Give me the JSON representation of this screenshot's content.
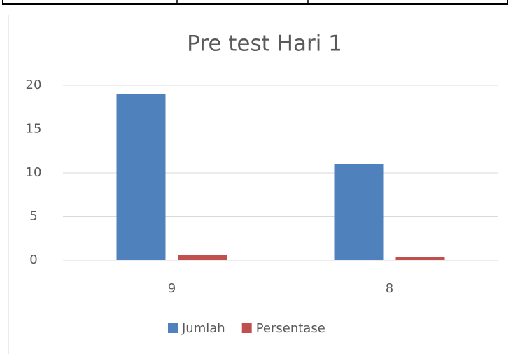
{
  "chart_data": {
    "type": "bar",
    "title": "Pre test Hari 1",
    "categories": [
      "9",
      "8"
    ],
    "series": [
      {
        "name": "Jumlah",
        "color": "#4f81bd",
        "values": [
          19,
          11
        ]
      },
      {
        "name": "Persentase",
        "color": "#c0504d",
        "values": [
          0.63,
          0.37
        ]
      }
    ],
    "ylim": [
      0,
      20
    ],
    "yticks": [
      0,
      5,
      10,
      15,
      20
    ],
    "grid": true,
    "legend": "bottom"
  }
}
